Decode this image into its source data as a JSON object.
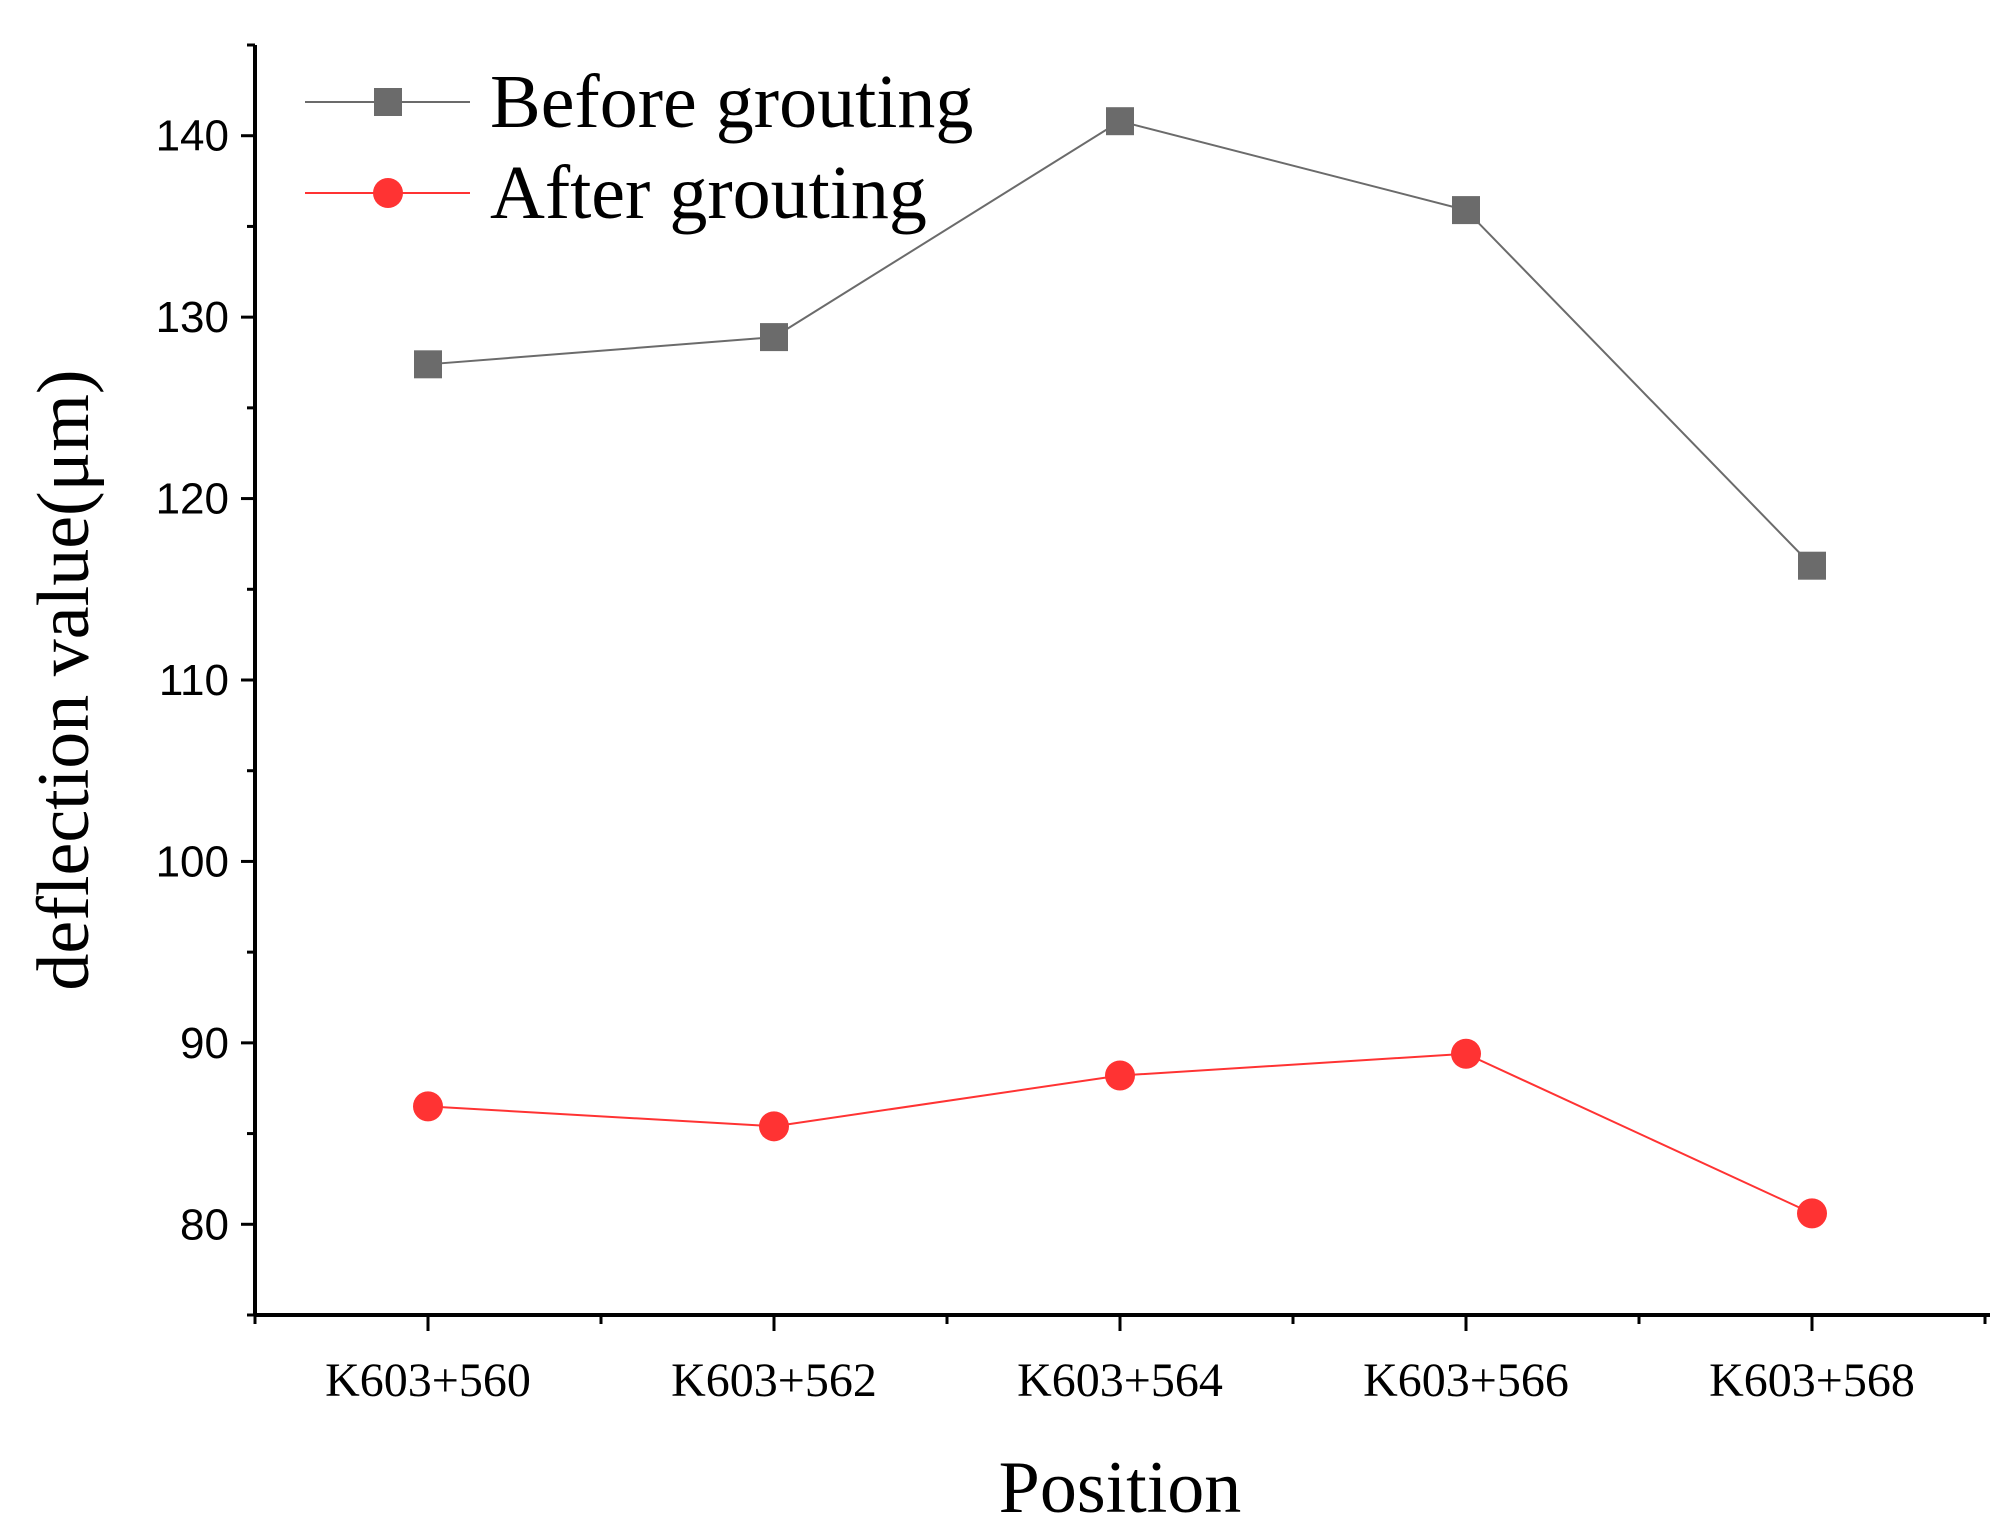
{
  "chart_data": {
    "type": "line",
    "title": "",
    "xlabel": "Position",
    "ylabel": "deflection value(μm)",
    "categories": [
      "K603+560",
      "K603+562",
      "K603+564",
      "K603+566",
      "K603+568"
    ],
    "ylim": [
      75,
      145
    ],
    "yticks": [
      80,
      90,
      100,
      110,
      120,
      130,
      140
    ],
    "grid": false,
    "legend_position": "top-left",
    "series": [
      {
        "name": "Before grouting",
        "marker": "square",
        "color": "#6b6b6b",
        "values": [
          127.4,
          128.9,
          140.8,
          135.9,
          116.3
        ]
      },
      {
        "name": "After grouting",
        "marker": "circle",
        "color": "#ff3333",
        "values": [
          86.5,
          85.4,
          88.2,
          89.4,
          80.6
        ]
      }
    ]
  }
}
